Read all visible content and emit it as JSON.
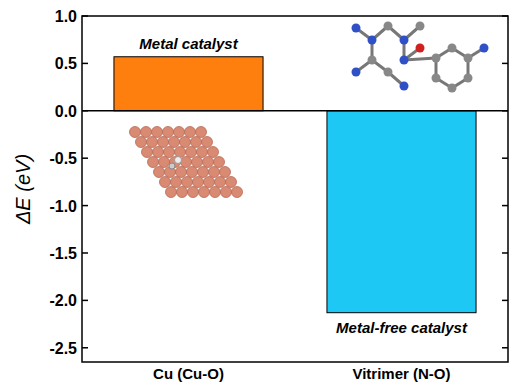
{
  "chart_data": {
    "type": "bar",
    "y_label": "ΔE (eV)",
    "categories": [
      "Cu (Cu-O)",
      "Vitrimer (N-O)"
    ],
    "values": [
      0.57,
      -2.13
    ],
    "colors": [
      "#ff7f0e",
      "#1ec8f5"
    ],
    "ylim": [
      -2.65,
      1.0
    ],
    "yticks": [
      {
        "value": -2.5,
        "label": "-2.5"
      },
      {
        "value": -2.0,
        "label": "-2.0"
      },
      {
        "value": -1.5,
        "label": "-1.5"
      },
      {
        "value": -1.0,
        "label": "-1.0"
      },
      {
        "value": -0.5,
        "label": "-0.5"
      },
      {
        "value": 0.0,
        "label": "0.0"
      },
      {
        "value": 0.5,
        "label": "0.5"
      },
      {
        "value": 1.0,
        "label": "1.0"
      }
    ],
    "annotations": [
      "Metal catalyst",
      "Metal-free catalyst"
    ],
    "grid": false
  }
}
